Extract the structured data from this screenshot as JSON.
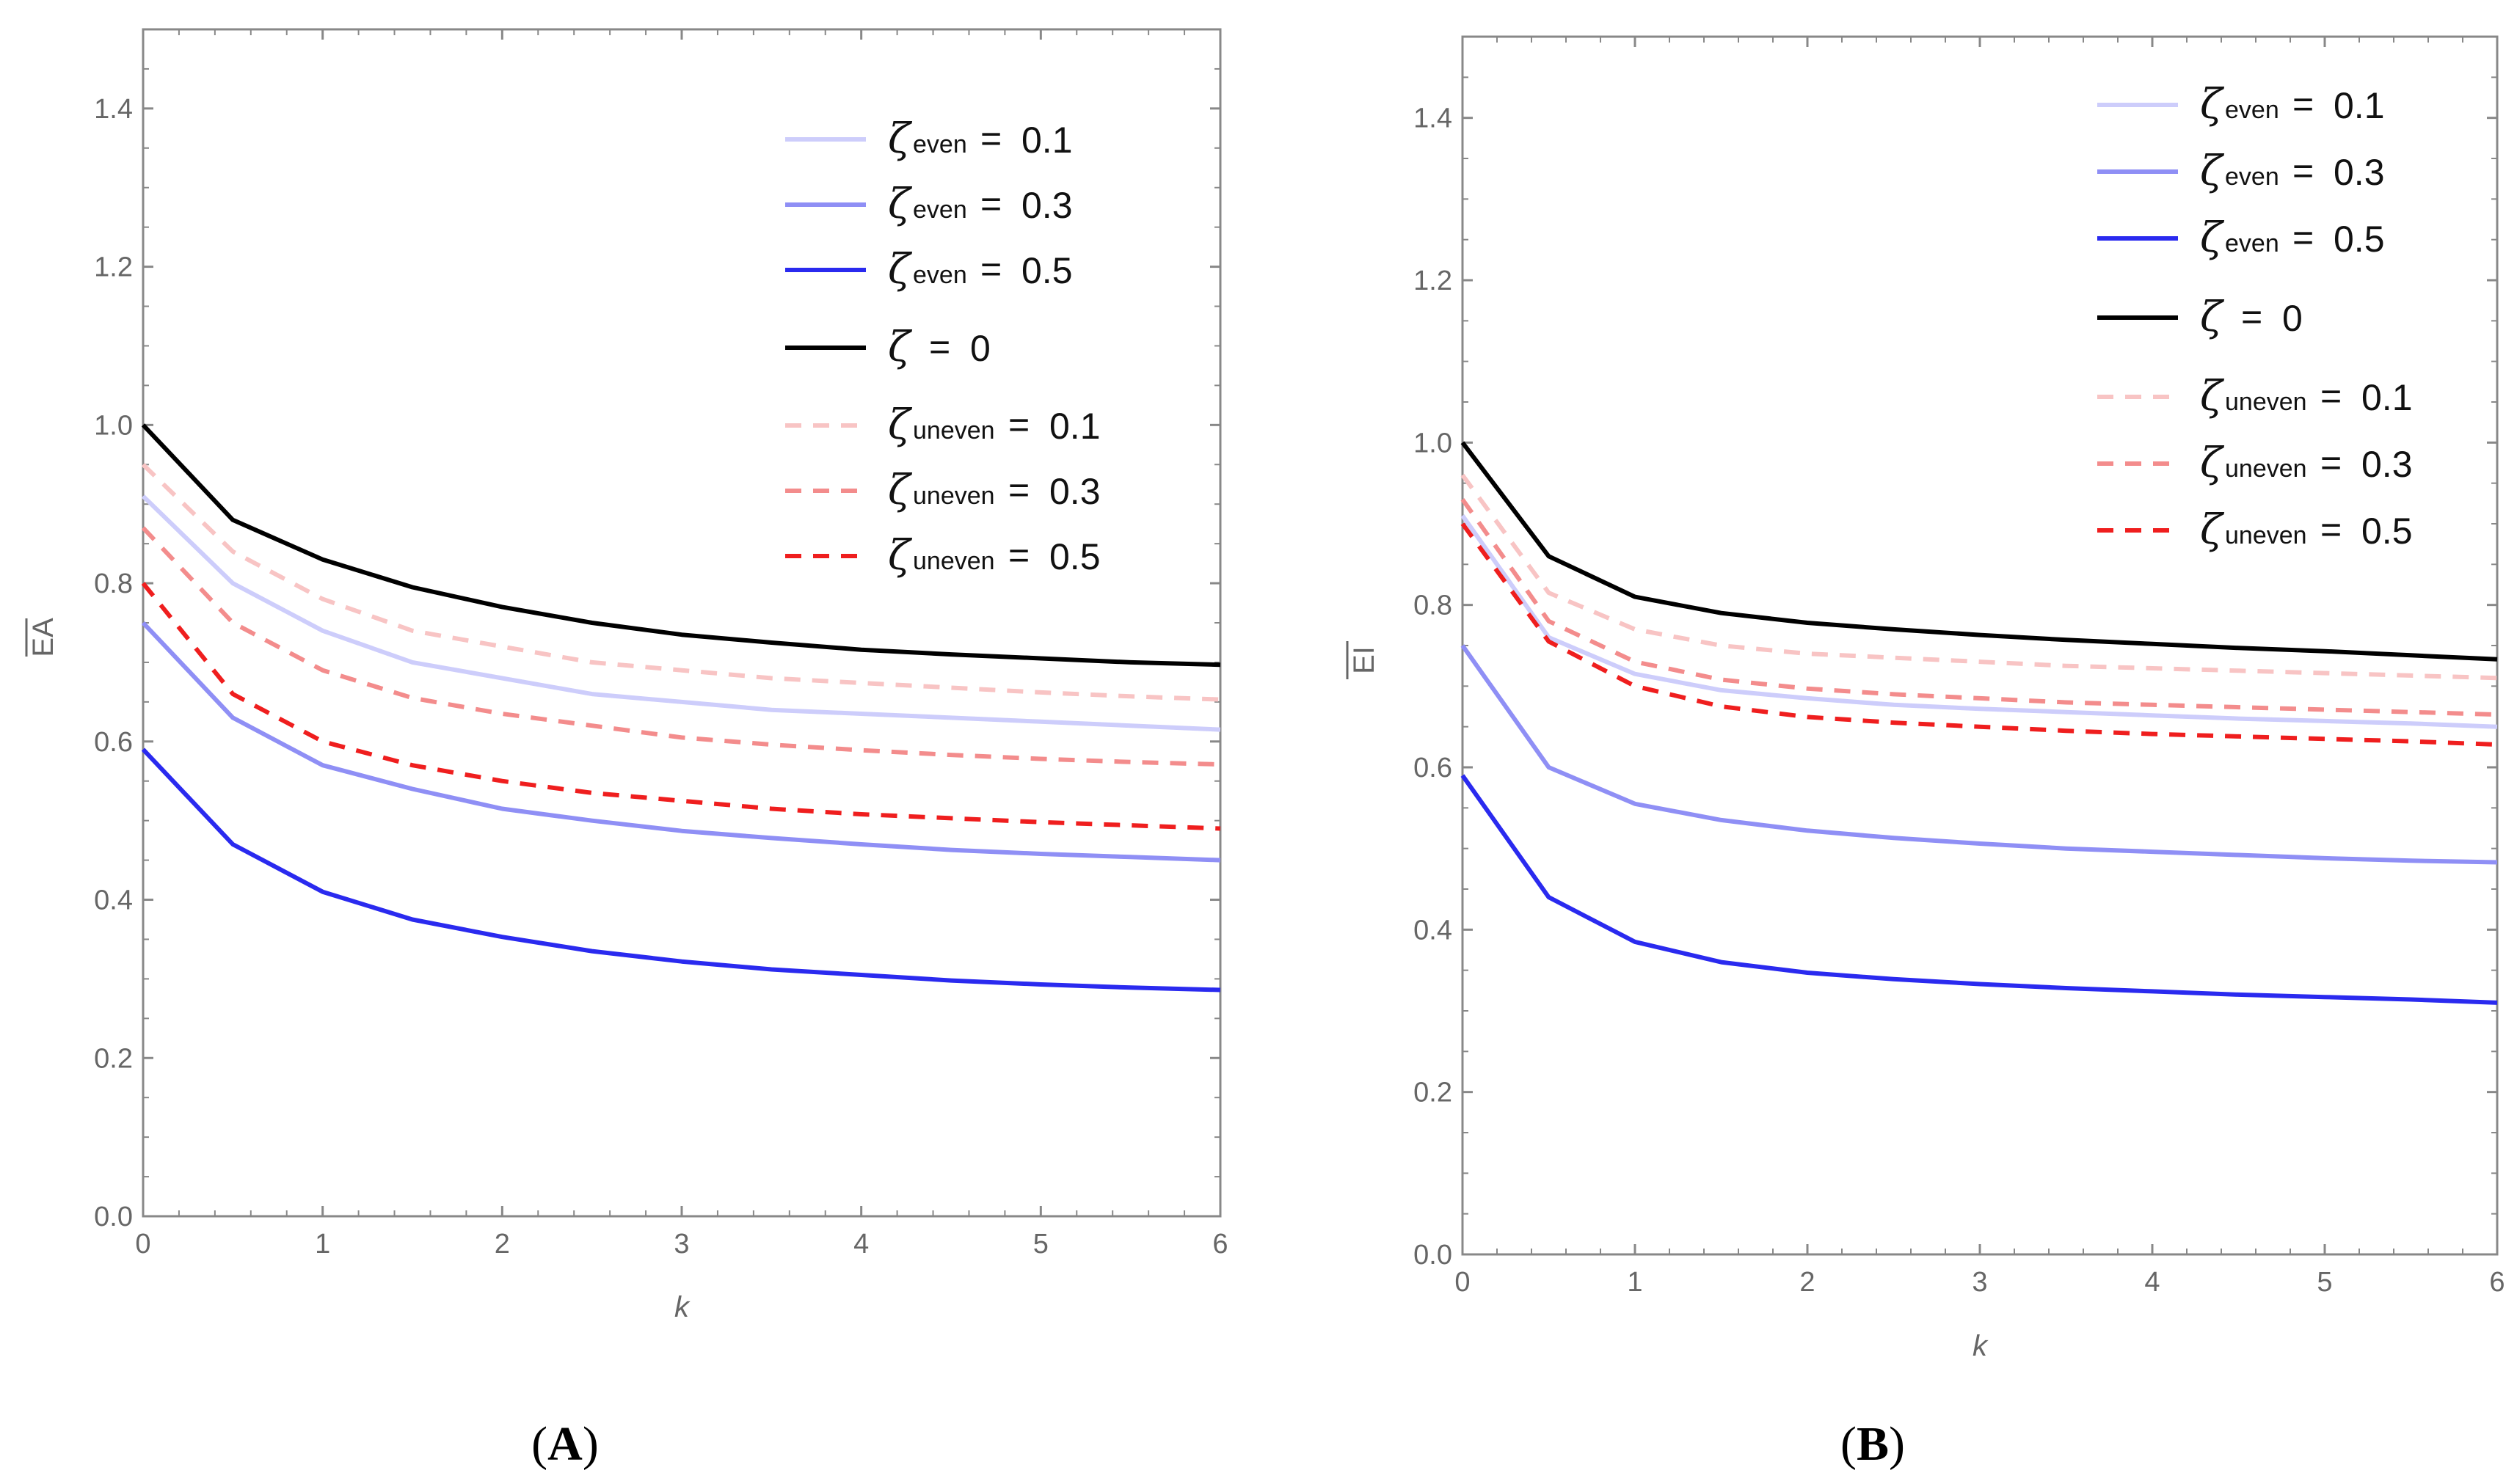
{
  "colors": {
    "even_0.1": "#cdcdfb",
    "even_0.3": "#8f8ff5",
    "even_0.5": "#2a2aef",
    "zero": "#000000",
    "uneven_0.1": "#f8c4c4",
    "uneven_0.3": "#f38c8c",
    "uneven_0.5": "#ef1e1e",
    "axis": "#888888"
  },
  "chart_data": [
    {
      "type": "line",
      "panel_label": "A",
      "ylabel": "EA",
      "xlabel": "k",
      "xlim": [
        0,
        6
      ],
      "ylim": [
        0,
        1.5
      ],
      "x_ticks": [
        "0",
        "1",
        "2",
        "3",
        "4",
        "5",
        "6"
      ],
      "y_ticks": [
        "0.0",
        "0.2",
        "0.4",
        "0.6",
        "0.8",
        "1.0",
        "1.2",
        "1.4"
      ],
      "x": [
        0,
        0.5,
        1,
        1.5,
        2,
        2.5,
        3,
        3.5,
        4,
        4.5,
        5,
        5.5,
        6
      ],
      "series": [
        {
          "key": "even_0.1",
          "symbol": "ζ",
          "sub": "even",
          "value": "0.1",
          "style": "solid",
          "values": [
            0.91,
            0.8,
            0.74,
            0.7,
            0.68,
            0.66,
            0.65,
            0.64,
            0.635,
            0.63,
            0.625,
            0.62,
            0.615
          ]
        },
        {
          "key": "even_0.3",
          "symbol": "ζ",
          "sub": "even",
          "value": "0.3",
          "style": "solid",
          "values": [
            0.75,
            0.63,
            0.57,
            0.54,
            0.515,
            0.5,
            0.487,
            0.478,
            0.47,
            0.463,
            0.458,
            0.454,
            0.45
          ]
        },
        {
          "key": "even_0.5",
          "symbol": "ζ",
          "sub": "even",
          "value": "0.5",
          "style": "solid",
          "values": [
            0.59,
            0.47,
            0.41,
            0.375,
            0.353,
            0.335,
            0.322,
            0.312,
            0.305,
            0.298,
            0.293,
            0.289,
            0.286
          ]
        },
        {
          "key": "zero",
          "symbol": "ζ",
          "sub": "",
          "value": "0",
          "style": "solid",
          "values": [
            1.0,
            0.88,
            0.83,
            0.795,
            0.77,
            0.75,
            0.735,
            0.725,
            0.716,
            0.71,
            0.705,
            0.7,
            0.697
          ]
        },
        {
          "key": "uneven_0.1",
          "symbol": "ζ",
          "sub": "uneven",
          "value": "0.1",
          "style": "dashed",
          "values": [
            0.95,
            0.84,
            0.78,
            0.74,
            0.72,
            0.7,
            0.69,
            0.68,
            0.674,
            0.668,
            0.662,
            0.657,
            0.653
          ]
        },
        {
          "key": "uneven_0.3",
          "symbol": "ζ",
          "sub": "uneven",
          "value": "0.3",
          "style": "dashed",
          "values": [
            0.87,
            0.75,
            0.69,
            0.655,
            0.635,
            0.62,
            0.605,
            0.596,
            0.589,
            0.583,
            0.578,
            0.574,
            0.571
          ]
        },
        {
          "key": "uneven_0.5",
          "symbol": "ζ",
          "sub": "uneven",
          "value": "0.5",
          "style": "dashed",
          "values": [
            0.8,
            0.66,
            0.6,
            0.57,
            0.55,
            0.535,
            0.525,
            0.515,
            0.508,
            0.503,
            0.498,
            0.494,
            0.49
          ]
        }
      ]
    },
    {
      "type": "line",
      "panel_label": "B",
      "ylabel": "EI",
      "xlabel": "k",
      "xlim": [
        0,
        6
      ],
      "ylim": [
        0,
        1.5
      ],
      "x_ticks": [
        "0",
        "1",
        "2",
        "3",
        "4",
        "5",
        "6"
      ],
      "y_ticks": [
        "0.0",
        "0.2",
        "0.4",
        "0.6",
        "0.8",
        "1.0",
        "1.2",
        "1.4"
      ],
      "x": [
        0,
        0.5,
        1,
        1.5,
        2,
        2.5,
        3,
        3.5,
        4,
        4.5,
        5,
        5.5,
        6
      ],
      "series": [
        {
          "key": "even_0.1",
          "symbol": "ζ",
          "sub": "even",
          "value": "0.1",
          "style": "solid",
          "values": [
            0.91,
            0.76,
            0.715,
            0.695,
            0.685,
            0.677,
            0.672,
            0.668,
            0.664,
            0.66,
            0.657,
            0.654,
            0.65
          ]
        },
        {
          "key": "even_0.3",
          "symbol": "ζ",
          "sub": "even",
          "value": "0.3",
          "style": "solid",
          "values": [
            0.75,
            0.6,
            0.555,
            0.535,
            0.522,
            0.513,
            0.506,
            0.5,
            0.496,
            0.492,
            0.488,
            0.485,
            0.483
          ]
        },
        {
          "key": "even_0.5",
          "symbol": "ζ",
          "sub": "even",
          "value": "0.5",
          "style": "solid",
          "values": [
            0.59,
            0.44,
            0.385,
            0.36,
            0.347,
            0.339,
            0.333,
            0.328,
            0.324,
            0.32,
            0.317,
            0.314,
            0.31
          ]
        },
        {
          "key": "zero",
          "symbol": "ζ",
          "sub": "",
          "value": "0",
          "style": "solid",
          "values": [
            1.0,
            0.86,
            0.81,
            0.79,
            0.778,
            0.77,
            0.763,
            0.757,
            0.752,
            0.747,
            0.743,
            0.738,
            0.733
          ]
        },
        {
          "key": "uneven_0.1",
          "symbol": "ζ",
          "sub": "uneven",
          "value": "0.1",
          "style": "dashed",
          "values": [
            0.96,
            0.815,
            0.77,
            0.75,
            0.74,
            0.735,
            0.73,
            0.725,
            0.722,
            0.719,
            0.716,
            0.713,
            0.71
          ]
        },
        {
          "key": "uneven_0.3",
          "symbol": "ζ",
          "sub": "uneven",
          "value": "0.3",
          "style": "dashed",
          "values": [
            0.93,
            0.78,
            0.73,
            0.708,
            0.697,
            0.69,
            0.685,
            0.68,
            0.677,
            0.674,
            0.671,
            0.668,
            0.665
          ]
        },
        {
          "key": "uneven_0.5",
          "symbol": "ζ",
          "sub": "uneven",
          "value": "0.5",
          "style": "dashed",
          "values": [
            0.9,
            0.755,
            0.7,
            0.675,
            0.662,
            0.655,
            0.65,
            0.645,
            0.641,
            0.638,
            0.635,
            0.632,
            0.628
          ]
        }
      ]
    }
  ],
  "legend_equals": "="
}
